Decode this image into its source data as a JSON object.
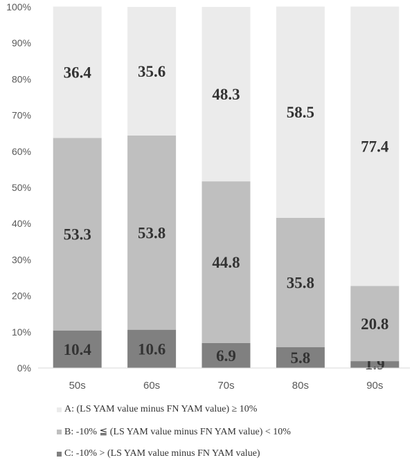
{
  "chart_data": {
    "type": "bar",
    "stacked": true,
    "categories": [
      "50s",
      "60s",
      "70s",
      "80s",
      "90s"
    ],
    "series": [
      {
        "name": "C: -10% > (LS YAM value minus FN YAM value)",
        "color": "#808080",
        "values": [
          10.4,
          10.6,
          6.9,
          5.8,
          1.9
        ]
      },
      {
        "name": "B: -10% ≦ (LS YAM value minus FN YAM value)  < 10%",
        "color": "#bfbfbf",
        "values": [
          53.3,
          53.8,
          44.8,
          35.8,
          20.8
        ]
      },
      {
        "name": "A: (LS YAM value minus FN YAM value) ≥ 10%",
        "color": "#ebebeb",
        "values": [
          36.4,
          35.6,
          48.3,
          58.5,
          77.4
        ]
      }
    ],
    "y_ticks": [
      "0%",
      "10%",
      "20%",
      "30%",
      "40%",
      "50%",
      "60%",
      "70%",
      "80%",
      "90%",
      "100%"
    ],
    "ylim": [
      0,
      100
    ],
    "grid": false,
    "legend_position": "bottom"
  }
}
